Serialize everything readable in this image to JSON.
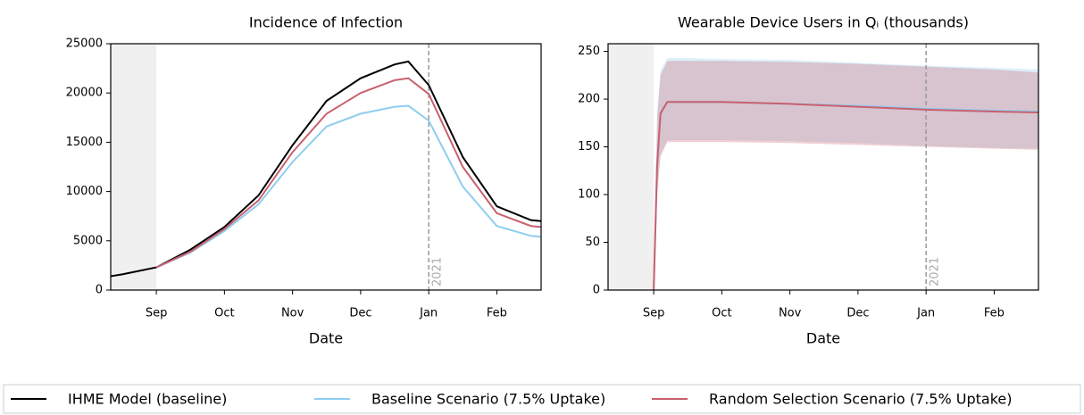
{
  "chart_data": [
    {
      "type": "line",
      "title": "Incidence of Infection",
      "x_label": "Date",
      "x": [
        -0.67,
        -0.5,
        0,
        0.5,
        1,
        1.5,
        2,
        2.5,
        3,
        3.5,
        3.7,
        4,
        4.5,
        5,
        5.5,
        5.65
      ],
      "xlim": [
        -0.67,
        5.65
      ],
      "xticks": [
        {
          "value": 0,
          "label": "Sep"
        },
        {
          "value": 1,
          "label": "Oct"
        },
        {
          "value": 2,
          "label": "Nov"
        },
        {
          "value": 3,
          "label": "Dec"
        },
        {
          "value": 4,
          "label": "Jan"
        },
        {
          "value": 5,
          "label": "Feb"
        }
      ],
      "ylim": [
        0,
        25000
      ],
      "yticks": [
        0,
        5000,
        10000,
        15000,
        20000,
        25000
      ],
      "shaded_span": [
        -0.67,
        0
      ],
      "vline": {
        "x": 4,
        "label": "2021"
      },
      "series": [
        {
          "name": "IHME Model (baseline)",
          "color": "#000000",
          "values": [
            1400,
            1600,
            2300,
            4100,
            6400,
            9600,
            14700,
            19200,
            21500,
            22900,
            23200,
            20800,
            13500,
            8500,
            7100,
            7000
          ]
        },
        {
          "name": "Baseline Scenario (7.5% Uptake)",
          "color": "#8ecdef",
          "values": [
            null,
            null,
            2300,
            3800,
            6000,
            8700,
            13000,
            16600,
            17900,
            18600,
            18700,
            17200,
            10500,
            6500,
            5500,
            5400
          ]
        },
        {
          "name": "Random Selection Scenario (7.5% Uptake)",
          "color": "#c9606e",
          "values": [
            null,
            null,
            2300,
            3900,
            6200,
            9100,
            14000,
            17900,
            20000,
            21300,
            21500,
            19900,
            12500,
            7800,
            6500,
            6400
          ]
        }
      ]
    },
    {
      "type": "line",
      "title": "Wearable Device Users in Qᵢ (thousands)",
      "x_label": "Date",
      "x": [
        0,
        0.05,
        0.1,
        0.2,
        0.5,
        1,
        2,
        3,
        4,
        5,
        5.65
      ],
      "xlim": [
        -0.67,
        5.65
      ],
      "xticks": [
        {
          "value": 0,
          "label": "Sep"
        },
        {
          "value": 1,
          "label": "Oct"
        },
        {
          "value": 2,
          "label": "Nov"
        },
        {
          "value": 3,
          "label": "Dec"
        },
        {
          "value": 4,
          "label": "Jan"
        },
        {
          "value": 5,
          "label": "Feb"
        }
      ],
      "ylim": [
        0,
        258
      ],
      "yticks": [
        0,
        50,
        100,
        150,
        200,
        250
      ],
      "shaded_span": [
        -0.67,
        0
      ],
      "vline": {
        "x": 4,
        "label": "2021"
      },
      "series": [
        {
          "color": "#8ecdef",
          "values": [
            0,
            130,
            186,
            197,
            197,
            197,
            195,
            193,
            190,
            188,
            187
          ],
          "lower": [
            0,
            100,
            142,
            157,
            157,
            157,
            156,
            154,
            151,
            149,
            148
          ],
          "upper": [
            0,
            185,
            230,
            243,
            243,
            242,
            241,
            238,
            235,
            233,
            231
          ]
        },
        {
          "color": "#c9606e",
          "values": [
            0,
            130,
            185,
            197,
            197,
            197,
            195,
            192,
            189,
            187,
            186
          ],
          "lower": [
            0,
            100,
            140,
            155,
            155,
            155,
            154,
            152,
            150,
            148,
            147
          ],
          "upper": [
            0,
            180,
            225,
            240,
            240,
            240,
            239,
            237,
            234,
            231,
            228
          ]
        }
      ]
    }
  ]
}
